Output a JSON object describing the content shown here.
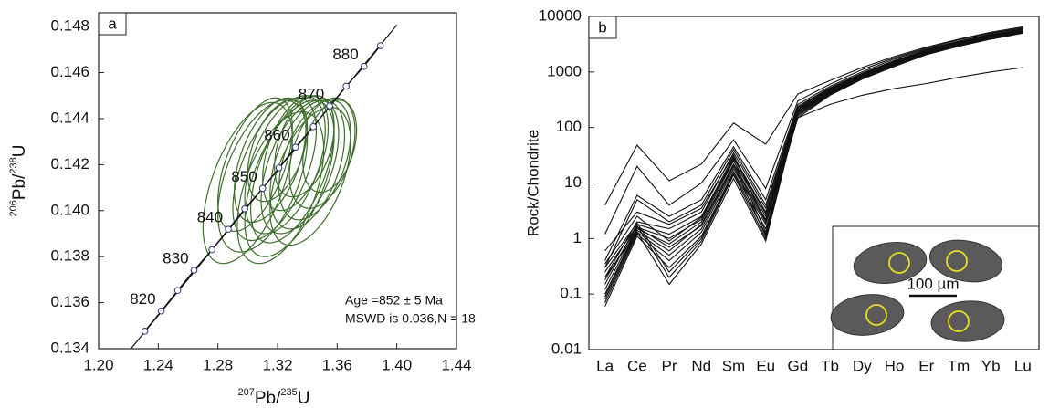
{
  "chart_data": [
    {
      "type": "concordia",
      "panel_label": "a",
      "xlabel": [
        "207",
        "Pb/",
        "235",
        "U"
      ],
      "ylabel": [
        "206",
        "Pb/",
        "238",
        "U"
      ],
      "xlim": [
        1.2,
        1.44
      ],
      "xticks": [
        {
          "value": 1.2,
          "label": "1.20"
        },
        1.24,
        1.28,
        1.32,
        1.36,
        {
          "value": 1.4,
          "label": "1.40"
        },
        1.44
      ],
      "ylim": [
        0.134,
        0.1486
      ],
      "yticks": [
        0.134,
        0.136,
        0.138,
        {
          "value": 0.14,
          "label": "0.140"
        },
        0.142,
        0.144,
        0.146,
        0.148
      ],
      "grid": false,
      "concordia": {
        "x": [
          1.231,
          1.242,
          1.253,
          1.264,
          1.276,
          1.287,
          1.298,
          1.31,
          1.321,
          1.332,
          1.344,
          1.355,
          1.366,
          1.378,
          1.389
        ],
        "y": [
          0.13476,
          0.13564,
          0.13653,
          0.13741,
          0.1383,
          0.13919,
          0.14008,
          0.14097,
          0.14186,
          0.14276,
          0.14365,
          0.14455,
          0.14541,
          0.14627,
          0.14717
        ],
        "point_labels": [
          null,
          820,
          null,
          830,
          null,
          840,
          null,
          850,
          null,
          860,
          null,
          870,
          null,
          880,
          null
        ]
      },
      "ellipse_color": "#3d6e2c",
      "ellipses": [
        {
          "x": 1.3,
          "y": 0.1412,
          "x_err": 0.03,
          "y_err": 0.0035,
          "rho": 0.55
        },
        {
          "x": 1.31,
          "y": 0.1415,
          "x_err": 0.03,
          "y_err": 0.0033,
          "rho": 0.5
        },
        {
          "x": 1.318,
          "y": 0.1418,
          "x_err": 0.028,
          "y_err": 0.0031,
          "rho": 0.55
        },
        {
          "x": 1.325,
          "y": 0.142,
          "x_err": 0.027,
          "y_err": 0.003,
          "rho": 0.5
        },
        {
          "x": 1.33,
          "y": 0.1418,
          "x_err": 0.028,
          "y_err": 0.0032,
          "rho": 0.55
        },
        {
          "x": 1.335,
          "y": 0.1419,
          "x_err": 0.026,
          "y_err": 0.0029,
          "rho": 0.5
        },
        {
          "x": 1.34,
          "y": 0.142,
          "x_err": 0.025,
          "y_err": 0.0028,
          "rho": 0.45
        },
        {
          "x": 1.328,
          "y": 0.1414,
          "x_err": 0.03,
          "y_err": 0.0034,
          "rho": 0.55
        },
        {
          "x": 1.322,
          "y": 0.141,
          "x_err": 0.029,
          "y_err": 0.0033,
          "rho": 0.5
        },
        {
          "x": 1.345,
          "y": 0.1422,
          "x_err": 0.024,
          "y_err": 0.0026,
          "rho": 0.45
        },
        {
          "x": 1.35,
          "y": 0.1425,
          "x_err": 0.022,
          "y_err": 0.0024,
          "rho": 0.4
        },
        {
          "x": 1.338,
          "y": 0.1428,
          "x_err": 0.02,
          "y_err": 0.0022,
          "rho": 0.4
        },
        {
          "x": 1.332,
          "y": 0.1425,
          "x_err": 0.022,
          "y_err": 0.0025,
          "rho": 0.45
        },
        {
          "x": 1.315,
          "y": 0.1422,
          "x_err": 0.024,
          "y_err": 0.0027,
          "rho": 0.5
        },
        {
          "x": 1.305,
          "y": 0.142,
          "x_err": 0.025,
          "y_err": 0.0029,
          "rho": 0.55
        },
        {
          "x": 1.342,
          "y": 0.1415,
          "x_err": 0.027,
          "y_err": 0.003,
          "rho": 0.5
        },
        {
          "x": 1.355,
          "y": 0.1428,
          "x_err": 0.018,
          "y_err": 0.002,
          "rho": 0.35
        },
        {
          "x": 1.32,
          "y": 0.1426,
          "x_err": 0.02,
          "y_err": 0.0022,
          "rho": 0.45
        }
      ],
      "annotations": [
        "Age =852 ± 5 Ma",
        "MSWD is 0.036,N = 18"
      ]
    },
    {
      "type": "line",
      "panel_label": "b",
      "ylabel": "Rock/Chondrite",
      "log_scale": true,
      "ylim": [
        0.01,
        10000
      ],
      "yticks": [
        0.01,
        0.1,
        1,
        10,
        100,
        1000,
        10000
      ],
      "grid": false,
      "categories": [
        "La",
        "Ce",
        "Pr",
        "Nd",
        "Sm",
        "Eu",
        "Gd",
        "Tb",
        "Dy",
        "Ho",
        "Er",
        "Tm",
        "Yb",
        "Lu"
      ],
      "line_color": "#111111",
      "inset_label": "100 µm",
      "series": [
        {
          "values": [
            4,
            48,
            11,
            22,
            120,
            50,
            400,
            700,
            1200,
            1900,
            2800,
            3900,
            5200,
            6500
          ]
        },
        {
          "values": [
            1.2,
            20,
            4,
            10,
            60,
            8,
            300,
            600,
            1100,
            1800,
            2700,
            3800,
            5000,
            6200
          ]
        },
        {
          "values": [
            0.4,
            6,
            2.5,
            5,
            45,
            5,
            260,
            550,
            1000,
            1700,
            2600,
            3600,
            4800,
            6000
          ]
        },
        {
          "values": [
            0.3,
            5,
            2,
            4,
            40,
            4,
            240,
            520,
            950,
            1600,
            2500,
            3500,
            4700,
            5800
          ]
        },
        {
          "values": [
            0.2,
            2,
            1.5,
            3,
            35,
            3.5,
            220,
            500,
            900,
            1550,
            2400,
            3400,
            4600,
            5700
          ]
        },
        {
          "values": [
            0.15,
            1.8,
            1.2,
            2.5,
            30,
            3,
            210,
            480,
            880,
            1500,
            2350,
            3300,
            4500,
            5600
          ]
        },
        {
          "values": [
            0.12,
            1.6,
            1,
            2.2,
            28,
            2.8,
            200,
            460,
            850,
            1450,
            2300,
            3200,
            4400,
            5500
          ]
        },
        {
          "values": [
            0.1,
            1.5,
            0.8,
            2,
            25,
            2.5,
            190,
            440,
            820,
            1400,
            2250,
            3150,
            4300,
            5400
          ]
        },
        {
          "values": [
            0.09,
            1.4,
            0.6,
            1.8,
            22,
            2.2,
            180,
            420,
            800,
            1380,
            2200,
            3100,
            4200,
            5300
          ]
        },
        {
          "values": [
            0.08,
            1.3,
            0.5,
            1.5,
            20,
            2,
            170,
            400,
            780,
            1350,
            2150,
            3050,
            4100,
            5200
          ]
        },
        {
          "values": [
            0.07,
            1.2,
            0.4,
            1.3,
            18,
            1.8,
            160,
            390,
            760,
            1300,
            2100,
            3000,
            4000,
            5100
          ]
        },
        {
          "values": [
            0.06,
            1.1,
            0.3,
            1.1,
            16,
            1.5,
            150,
            380,
            740,
            1250,
            2050,
            2900,
            3900,
            5000
          ]
        },
        {
          "values": [
            0.3,
            1.9,
            0.25,
            1,
            15,
            1.2,
            210,
            470,
            870,
            1480,
            2300,
            3250,
            4400,
            5500
          ]
        },
        {
          "values": [
            0.25,
            1.7,
            0.2,
            0.9,
            14,
            1,
            200,
            450,
            840,
            1420,
            2250,
            3150,
            4250,
            5350
          ]
        },
        {
          "values": [
            0.2,
            1.3,
            0.15,
            0.8,
            12,
            0.9,
            190,
            430,
            810,
            1380,
            2200,
            3100,
            4150,
            5250
          ]
        },
        {
          "values": [
            0.35,
            2.5,
            0.9,
            2.4,
            26,
            1.3,
            230,
            500,
            920,
            1560,
            2450,
            3450,
            4600,
            5700
          ]
        },
        {
          "values": [
            0.18,
            1.6,
            0.7,
            1.7,
            21,
            1.1,
            180,
            410,
            790,
            1340,
            2150,
            3050,
            4100,
            5200
          ]
        },
        {
          "values": [
            0.6,
            3,
            1.8,
            3.5,
            32,
            2,
            150,
            260,
            380,
            500,
            620,
            800,
            1000,
            1200
          ]
        }
      ]
    }
  ]
}
